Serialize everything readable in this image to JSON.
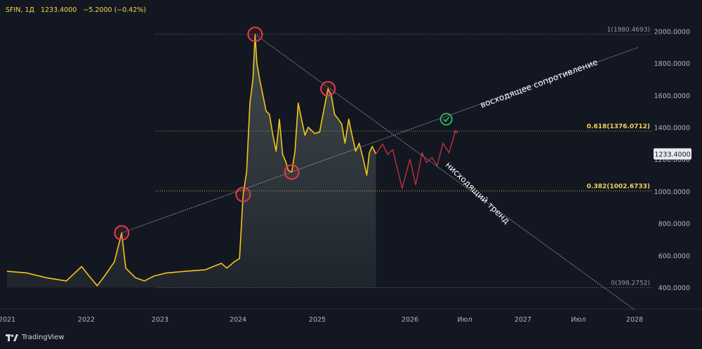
{
  "header": {
    "symbol": "SFIN, 1Д",
    "price": "1233.4000",
    "change": "−5.2000 (−0.42%)"
  },
  "branding": {
    "name": "TradingView"
  },
  "colors": {
    "background": "#131722",
    "price_line": "#f5c518",
    "fib_line": "#d4c24a",
    "fib_gray": "#8a8d96",
    "marker": "#e23b4b",
    "forecast": "#c8323c",
    "check": "#2ebd5f",
    "trend_line": "#b2b5be"
  },
  "chart_data": {
    "type": "line",
    "x_axis": {
      "ticks": [
        "2021",
        "2022",
        "2023",
        "2024",
        "2025",
        "2026",
        "Июл",
        "2027",
        "Июл",
        "2028"
      ]
    },
    "y_axis": {
      "ticks": [
        "400.0000",
        "600.0000",
        "800.0000",
        "1000.0000",
        "1200.0000",
        "1400.0000",
        "1600.0000",
        "1800.0000",
        "2000.0000"
      ],
      "range": [
        260,
        2130
      ],
      "position": "right"
    },
    "current_price_label": "1233.4000",
    "series": [
      {
        "points": [
          [
            "2021-01-01",
            500
          ],
          [
            "2021-04-01",
            490
          ],
          [
            "2021-07-01",
            460
          ],
          [
            "2021-10-01",
            440
          ],
          [
            "2021-12-10",
            530
          ],
          [
            "2022-01-15",
            470
          ],
          [
            "2022-02-24",
            410
          ],
          [
            "2022-04-01",
            470
          ],
          [
            "2022-05-20",
            560
          ],
          [
            "2022-06-25",
            740
          ],
          [
            "2022-07-15",
            520
          ],
          [
            "2022-09-01",
            460
          ],
          [
            "2022-10-15",
            440
          ],
          [
            "2022-12-01",
            470
          ],
          [
            "2023-02-01",
            490
          ],
          [
            "2023-05-01",
            500
          ],
          [
            "2023-08-01",
            510
          ],
          [
            "2023-10-15",
            550
          ],
          [
            "2023-11-10",
            520
          ],
          [
            "2023-12-15",
            560
          ],
          [
            "2024-01-08",
            580
          ],
          [
            "2024-01-25",
            980
          ],
          [
            "2024-02-10",
            1120
          ],
          [
            "2024-02-25",
            1550
          ],
          [
            "2024-03-10",
            1700
          ],
          [
            "2024-03-20",
            1980
          ],
          [
            "2024-03-28",
            1800
          ],
          [
            "2024-04-10",
            1700
          ],
          [
            "2024-04-25",
            1600
          ],
          [
            "2024-05-10",
            1500
          ],
          [
            "2024-05-25",
            1480
          ],
          [
            "2024-06-10",
            1350
          ],
          [
            "2024-06-25",
            1250
          ],
          [
            "2024-07-10",
            1450
          ],
          [
            "2024-07-25",
            1230
          ],
          [
            "2024-08-10",
            1180
          ],
          [
            "2024-08-20",
            1130
          ],
          [
            "2024-09-05",
            1120
          ],
          [
            "2024-09-20",
            1250
          ],
          [
            "2024-10-05",
            1550
          ],
          [
            "2024-10-20",
            1450
          ],
          [
            "2024-11-05",
            1350
          ],
          [
            "2024-11-20",
            1400
          ],
          [
            "2024-12-05",
            1380
          ],
          [
            "2024-12-20",
            1360
          ],
          [
            "2025-01-10",
            1370
          ],
          [
            "2025-02-01",
            1550
          ],
          [
            "2025-02-12",
            1640
          ],
          [
            "2025-02-25",
            1600
          ],
          [
            "2025-03-10",
            1480
          ],
          [
            "2025-03-25",
            1450
          ],
          [
            "2025-04-07",
            1420
          ],
          [
            "2025-04-20",
            1300
          ],
          [
            "2025-05-05",
            1450
          ],
          [
            "2025-05-15",
            1370
          ],
          [
            "2025-06-01",
            1250
          ],
          [
            "2025-06-15",
            1300
          ],
          [
            "2025-07-01",
            1200
          ],
          [
            "2025-07-15",
            1100
          ],
          [
            "2025-07-25",
            1240
          ],
          [
            "2025-08-05",
            1280
          ],
          [
            "2025-08-20",
            1233.4
          ]
        ]
      }
    ],
    "forecast_path": [
      [
        "2025-08-20",
        1233
      ],
      [
        "2025-09-15",
        1295
      ],
      [
        "2025-10-05",
        1230
      ],
      [
        "2025-10-25",
        1260
      ],
      [
        "2025-12-01",
        1020
      ],
      [
        "2026-01-01",
        1200
      ],
      [
        "2026-01-20",
        1040
      ],
      [
        "2026-02-10",
        1240
      ],
      [
        "2026-02-25",
        1180
      ],
      [
        "2026-03-15",
        1210
      ],
      [
        "2026-04-01",
        1160
      ],
      [
        "2026-04-20",
        1300
      ],
      [
        "2026-05-10",
        1240
      ],
      [
        "2026-06-01",
        1380
      ]
    ],
    "fibonacci": [
      {
        "label": "1(1980.4693)",
        "value": 1980.4693
      },
      {
        "label": "0.618(1376.0712)",
        "value": 1376.0712
      },
      {
        "label": "0.382(1002.6733)",
        "value": 1002.6733
      },
      {
        "label": "0(398.2752)",
        "value": 398.2752
      }
    ],
    "trendlines": [
      {
        "label": "восходящее сопротивление",
        "from": [
          "2022-06-25",
          740
        ],
        "to": [
          "2028-01-15",
          1900
        ]
      },
      {
        "label": "нисходящий тренд",
        "from": [
          "2024-03-20",
          1980
        ],
        "to": [
          "2028-01-01",
          260
        ]
      }
    ],
    "circle_markers": [
      [
        "2022-06-25",
        740
      ],
      [
        "2024-01-25",
        980
      ],
      [
        "2024-03-20",
        1980
      ],
      [
        "2024-09-05",
        1120
      ],
      [
        "2025-02-12",
        1640
      ]
    ],
    "check_marker": [
      "2026-05-01",
      1450
    ]
  }
}
